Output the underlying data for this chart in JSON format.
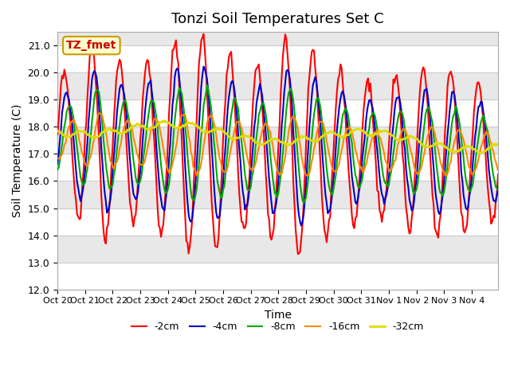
{
  "title": "Tonzi Soil Temperatures Set C",
  "xlabel": "Time",
  "ylabel": "Soil Temperature (C)",
  "ylim": [
    12.0,
    21.5
  ],
  "yticks": [
    12.0,
    13.0,
    14.0,
    15.0,
    16.0,
    17.0,
    18.0,
    19.0,
    20.0,
    21.0
  ],
  "x_labels": [
    "Oct 20",
    "Oct 21",
    "Oct 22",
    "Oct 23",
    "Oct 24",
    "Oct 25",
    "Oct 26",
    "Oct 27",
    "Oct 28",
    "Oct 29",
    "Oct 30",
    "Oct 31",
    "Nov 1",
    "Nov 2",
    "Nov 3",
    "Nov 4"
  ],
  "annotation_text": "TZ_fmet",
  "annotation_bg": "#ffffcc",
  "annotation_border": "#cc9900",
  "annotation_text_color": "#cc0000",
  "legend_entries": [
    "-2cm",
    "-4cm",
    "-8cm",
    "-16cm",
    "-32cm"
  ],
  "line_colors": [
    "#ff0000",
    "#0000cc",
    "#00aa00",
    "#ff8800",
    "#dddd00"
  ],
  "line_widths": [
    1.5,
    1.5,
    1.5,
    1.5,
    2.0
  ],
  "background_color": "#ffffff",
  "plot_bg_color": "#e8e8e8",
  "n_days": 16,
  "ppd": 24,
  "band_colors": [
    "#ffffff",
    "#e8e8e8"
  ],
  "ylabel_fontsize": 10,
  "xlabel_fontsize": 10,
  "title_fontsize": 13,
  "tick_fontsize": 9
}
